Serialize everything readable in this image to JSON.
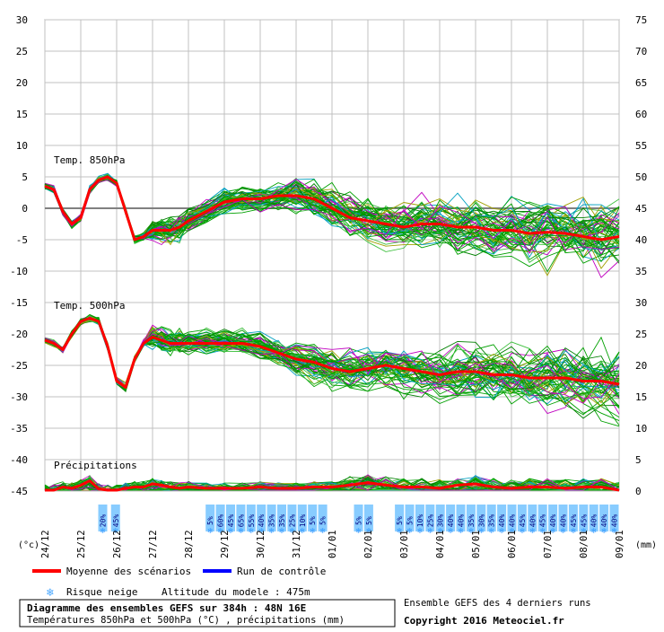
{
  "chart_data": {
    "type": "line",
    "left_axis_ticks": [
      "30",
      "25",
      "20",
      "15",
      "10",
      "5",
      "0",
      "-5",
      "-10",
      "-15",
      "-20",
      "-25",
      "-30",
      "-35",
      "-40",
      "-45"
    ],
    "right_axis_ticks": [
      "75",
      "70",
      "65",
      "60",
      "55",
      "50",
      "45",
      "40",
      "35",
      "30",
      "25",
      "20",
      "15",
      "10",
      "5",
      "0"
    ],
    "left_axis_unit": "(°c)",
    "right_axis_unit": "(mm)",
    "x_dates": [
      "24/12",
      "25/12",
      "26/12",
      "27/12",
      "28/12",
      "29/12",
      "30/12",
      "31/12",
      "01/01",
      "02/01",
      "03/01",
      "04/01",
      "05/01",
      "06/01",
      "07/01",
      "08/01",
      "09/01"
    ],
    "panel_labels": {
      "t850": "Temp. 850hPa",
      "t500": "Temp. 500hPa",
      "precip": "Précipitations"
    },
    "snow_risk_pct": [
      "20%",
      "45%",
      "5%",
      "60%",
      "45%",
      "65%",
      "55%",
      "40%",
      "35%",
      "35%",
      "25%",
      "10%",
      "5%",
      "5%",
      "5%",
      "5%",
      "5%",
      "5%",
      "10%",
      "25%",
      "30%",
      "40%",
      "40%",
      "35%",
      "30%",
      "35%",
      "40%",
      "40%",
      "45%",
      "40%",
      "45%",
      "40%",
      "40%",
      "45%",
      "45%",
      "40%",
      "40%",
      "40%",
      "40%",
      "35%",
      "25%"
    ],
    "series": [
      {
        "name": "Moyenne des scénarios",
        "color": "#ff0000",
        "x_days": [
          0,
          0.25,
          0.5,
          0.75,
          1,
          1.25,
          1.5,
          1.75,
          2,
          2.25,
          2.5,
          2.75,
          3,
          3.25,
          3.5,
          3.75,
          4,
          4.5,
          5,
          5.5,
          6,
          6.5,
          7,
          7.5,
          8,
          8.5,
          9,
          9.5,
          10,
          10.5,
          11,
          11.5,
          12,
          12.5,
          13,
          13.5,
          14,
          14.5,
          15,
          15.5,
          16
        ],
        "t850": [
          3.5,
          3,
          -0.5,
          -2.5,
          -1.5,
          3,
          4.5,
          5,
          4,
          -0.5,
          -5,
          -4.5,
          -3.5,
          -3.5,
          -3.5,
          -3,
          -2,
          -0.5,
          1,
          1.5,
          1.5,
          2,
          2,
          1.5,
          0,
          -1.5,
          -2,
          -2.5,
          -3,
          -2.5,
          -2.5,
          -3,
          -3,
          -3.5,
          -3.5,
          -4,
          -3.8,
          -4,
          -4.5,
          -5,
          -4.5
        ],
        "t500": [
          -21,
          -21.5,
          -22.5,
          -20,
          -18,
          -17.5,
          -18,
          -22,
          -27.5,
          -28.5,
          -24,
          -21.5,
          -20.5,
          -21,
          -21.5,
          -21.5,
          -21.5,
          -21.5,
          -21.5,
          -21.5,
          -22,
          -23,
          -24,
          -24.5,
          -25.5,
          -26,
          -25.5,
          -25,
          -25.5,
          -26,
          -26.5,
          -26,
          -26,
          -26.5,
          -26.5,
          -27,
          -27,
          -27,
          -27.5,
          -27.5,
          -28
        ],
        "precip": [
          0,
          0,
          0.5,
          0.3,
          0.8,
          1.5,
          0.2,
          0,
          0,
          0.3,
          0.5,
          0.5,
          1,
          0.8,
          0.5,
          0.3,
          0.5,
          0.3,
          0.3,
          0.3,
          0.5,
          0.3,
          0.3,
          0.5,
          0.5,
          0.8,
          1.2,
          0.8,
          0.5,
          0.5,
          0.3,
          0.8,
          1,
          0.5,
          0.3,
          0.5,
          0.5,
          0.3,
          0.5,
          0.5,
          0
        ]
      },
      {
        "name": "Run de contrôle",
        "color": "#0000ff"
      }
    ]
  },
  "legend": {
    "mean_label": "Moyenne des scénarios",
    "control_label": "Run de contrôle",
    "snow_label": "Risque neige",
    "altitude_label": "Altitude du modele : 475m"
  },
  "footer": {
    "title": "Diagramme des ensembles GEFS sur 384h : 48N 16E",
    "subtitle": "Températures 850hPa et 500hPa (°C) , précipitations (mm)",
    "ensemble_note": "Ensemble GEFS des 4 derniers runs",
    "copyright": "Copyright 2016 Meteociel.fr"
  },
  "colors": {
    "ensemble": [
      "#00a000",
      "#00a000",
      "#00a000",
      "#c000c0",
      "#a0a000",
      "#00a0c0",
      "#40c040",
      "#008000"
    ],
    "snow_box": "#88ccff",
    "snow_text": "#000080",
    "grid": "#c0c0c0"
  }
}
